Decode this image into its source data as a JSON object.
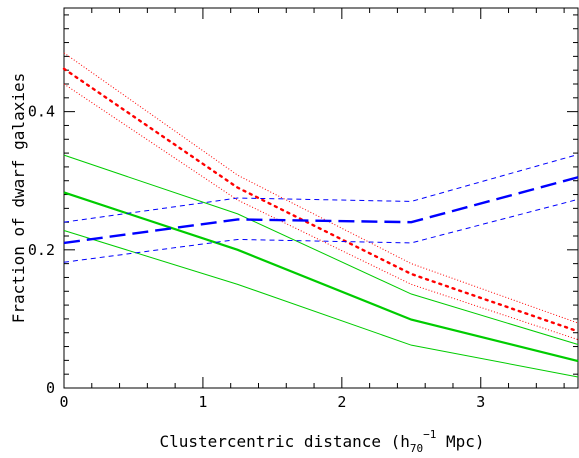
{
  "chart_data": {
    "type": "line",
    "xlabel_main": "Clustercentric distance (h",
    "xlabel_sub": "70",
    "xlabel_sup": "−1",
    "xlabel_tail": " Mpc)",
    "ylabel": "Fraction of dwarf galaxies",
    "xlim": [
      0,
      3.7
    ],
    "ylim": [
      0,
      0.55
    ],
    "x_ticks": [
      0,
      1,
      2,
      3
    ],
    "y_ticks": [
      0,
      0.2,
      0.4
    ],
    "x_tick_labels": [
      "0",
      "1",
      "2",
      "3"
    ],
    "y_tick_labels": [
      "0",
      "0.2",
      "0.4"
    ],
    "grid": false,
    "series": [
      {
        "color": "#00cc00",
        "style": "solid",
        "width": 2.2,
        "points": [
          [
            0,
            0.283
          ],
          [
            1.25,
            0.2
          ],
          [
            2.5,
            0.099
          ],
          [
            3.7,
            0.039
          ]
        ]
      },
      {
        "color": "#00cc00",
        "style": "solid",
        "width": 1,
        "points": [
          [
            0,
            0.337
          ],
          [
            1.25,
            0.252
          ],
          [
            2.5,
            0.136
          ],
          [
            3.7,
            0.063
          ]
        ]
      },
      {
        "color": "#00cc00",
        "style": "solid",
        "width": 1,
        "points": [
          [
            0,
            0.228
          ],
          [
            1.25,
            0.15
          ],
          [
            2.5,
            0.062
          ],
          [
            3.7,
            0.016
          ]
        ]
      },
      {
        "color": "#ff0000",
        "style": "dotted",
        "width": 2.4,
        "points": [
          [
            0,
            0.462
          ],
          [
            1.25,
            0.29
          ],
          [
            2.5,
            0.165
          ],
          [
            3.7,
            0.082
          ]
        ]
      },
      {
        "color": "#ff0000",
        "style": "dotted-thin",
        "width": 1,
        "points": [
          [
            0,
            0.485
          ],
          [
            1.25,
            0.308
          ],
          [
            2.5,
            0.18
          ],
          [
            3.7,
            0.094
          ]
        ]
      },
      {
        "color": "#ff0000",
        "style": "dotted-thin",
        "width": 1,
        "points": [
          [
            0,
            0.44
          ],
          [
            1.25,
            0.272
          ],
          [
            2.5,
            0.15
          ],
          [
            3.7,
            0.07
          ]
        ]
      },
      {
        "color": "#0000ff",
        "style": "longdash",
        "width": 2.4,
        "points": [
          [
            0,
            0.21
          ],
          [
            1.25,
            0.244
          ],
          [
            2.5,
            0.24
          ],
          [
            3.7,
            0.305
          ]
        ]
      },
      {
        "color": "#0000ff",
        "style": "dashed",
        "width": 1,
        "points": [
          [
            0,
            0.24
          ],
          [
            1.25,
            0.275
          ],
          [
            2.5,
            0.27
          ],
          [
            3.7,
            0.338
          ]
        ]
      },
      {
        "color": "#0000ff",
        "style": "dashed",
        "width": 1,
        "points": [
          [
            0,
            0.182
          ],
          [
            1.25,
            0.215
          ],
          [
            2.5,
            0.21
          ],
          [
            3.7,
            0.273
          ]
        ]
      }
    ]
  }
}
